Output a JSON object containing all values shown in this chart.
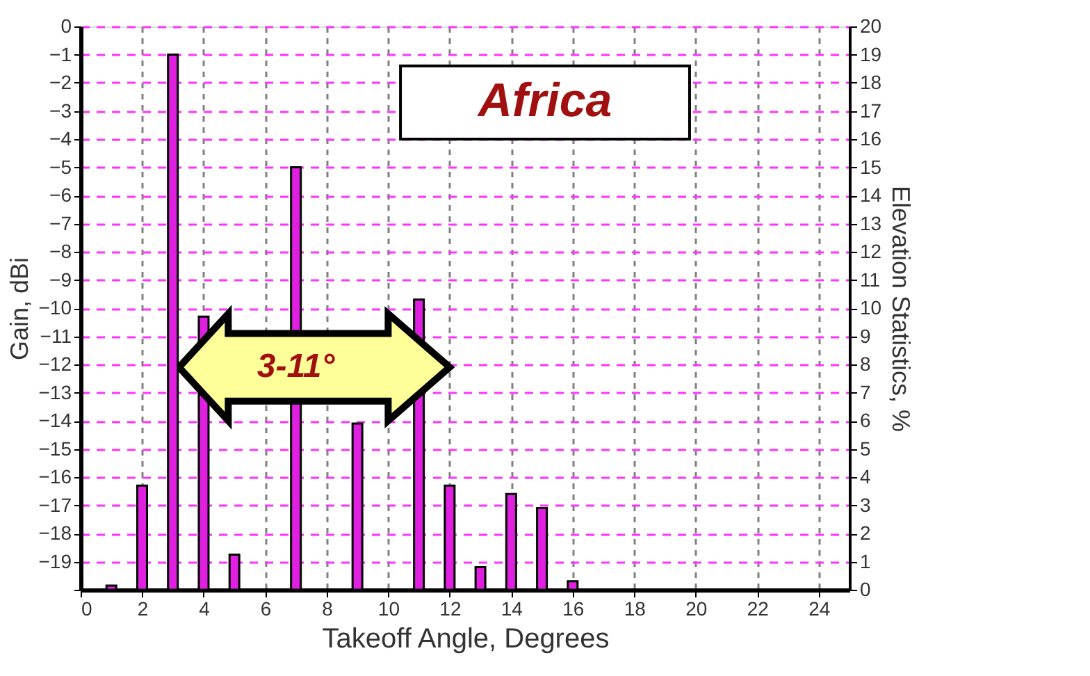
{
  "chart_data": {
    "type": "bar",
    "title": "Africa",
    "xlabel": "Takeoff Angle, Degrees",
    "ylabel": "Gain, dBi",
    "y2label": "Elevation Statistics, %",
    "x": [
      1,
      2,
      3,
      4,
      5,
      6,
      7,
      8,
      9,
      10,
      11,
      12,
      13,
      14,
      15,
      16
    ],
    "series": [
      {
        "color": "#e020e0",
        "axis": "y2",
        "values": [
          0.15,
          3.7,
          19.0,
          9.7,
          1.25,
          null,
          15.0,
          null,
          5.9,
          null,
          10.3,
          3.7,
          0.8,
          3.4,
          2.9,
          0.3
        ]
      }
    ],
    "xlim": [
      0,
      25
    ],
    "xticks": [
      0,
      2,
      4,
      6,
      8,
      10,
      12,
      14,
      16,
      18,
      20,
      22,
      24
    ],
    "ylim": [
      -20,
      0
    ],
    "yticks": [
      0,
      -1,
      -2,
      -3,
      -4,
      -5,
      -6,
      -7,
      -8,
      -9,
      -10,
      -11,
      -12,
      -13,
      -14,
      -15,
      -16,
      -17,
      -18,
      -19,
      {
        "value": -20,
        "label": null
      }
    ],
    "y2lim": [
      0,
      20
    ],
    "y2ticks": [
      0,
      1,
      2,
      3,
      4,
      5,
      6,
      7,
      8,
      9,
      10,
      11,
      12,
      13,
      14,
      15,
      16,
      17,
      18,
      19,
      20
    ],
    "annotations": [
      "3-11°"
    ],
    "grid": true
  }
}
